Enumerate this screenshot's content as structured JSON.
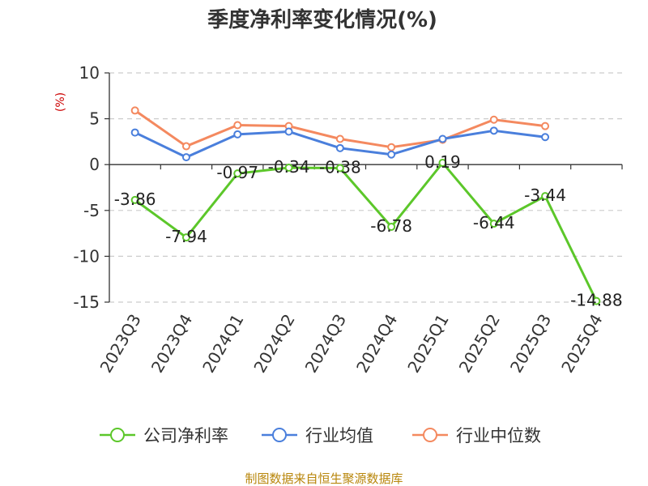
{
  "chart_data": {
    "type": "line",
    "title": "季度净利率变化情况(%)",
    "unit_label": "(%)",
    "categories": [
      "2023Q3",
      "2023Q4",
      "2024Q1",
      "2024Q2",
      "2024Q3",
      "2024Q4",
      "2025Q1",
      "2025Q2",
      "2025Q3",
      "2025Q4"
    ],
    "ylim": [
      -15,
      10
    ],
    "yticks": [
      10,
      5,
      0,
      -5,
      -10,
      -15
    ],
    "grid": true,
    "legend_position": "bottom",
    "series": [
      {
        "name": "公司净利率",
        "color": "#5cc72a",
        "values": [
          -3.86,
          -7.94,
          -0.97,
          -0.34,
          -0.38,
          -6.78,
          0.19,
          -6.44,
          -3.44,
          -14.88
        ],
        "labels": [
          "-3.86",
          "-7.94",
          "-0.97",
          "-0.34",
          "-0.38",
          "-6.78",
          "0.19",
          "-6.44",
          "-3.44",
          "-14.88"
        ]
      },
      {
        "name": "行业均值",
        "color": "#4a7fdc",
        "values": [
          3.5,
          0.8,
          3.3,
          3.6,
          1.8,
          1.1,
          2.8,
          3.7,
          3.0,
          null
        ]
      },
      {
        "name": "行业中位数",
        "color": "#f4895f",
        "values": [
          5.9,
          2.0,
          4.3,
          4.2,
          2.8,
          1.9,
          2.7,
          4.9,
          4.2,
          null
        ]
      }
    ]
  },
  "source": "制图数据来自恒生聚源数据库"
}
